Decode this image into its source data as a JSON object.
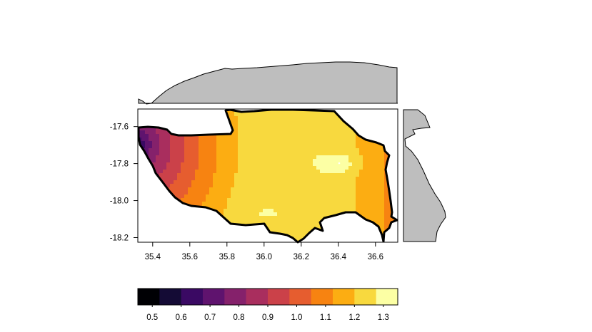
{
  "map": {
    "x_axis": {
      "ticks": [
        "35.4",
        "35.6",
        "35.8",
        "36.0",
        "36.2",
        "36.4",
        "36.6"
      ],
      "range": [
        35.32,
        36.72
      ]
    },
    "y_axis": {
      "ticks": [
        "-17.6",
        "-17.8",
        "-18.0",
        "-18.2"
      ],
      "range": [
        -17.505,
        -18.225
      ]
    },
    "fill_colormap": "inferno",
    "outline_color": "#000000",
    "marginal_fill": "#bebebe"
  },
  "legend": {
    "tick_labels": [
      "0.5",
      "0.6",
      "0.7",
      "0.8",
      "0.9",
      "1.0",
      "1.1",
      "1.2",
      "1.3"
    ],
    "range": [
      0.45,
      1.35
    ],
    "colors": [
      "#000004",
      "#140B35",
      "#3A0963",
      "#5F136E",
      "#85216B",
      "#A92E5E",
      "#CB4149",
      "#E65D2F",
      "#F78311",
      "#FCAD12",
      "#F8D93E",
      "#FCFFA4"
    ]
  }
}
